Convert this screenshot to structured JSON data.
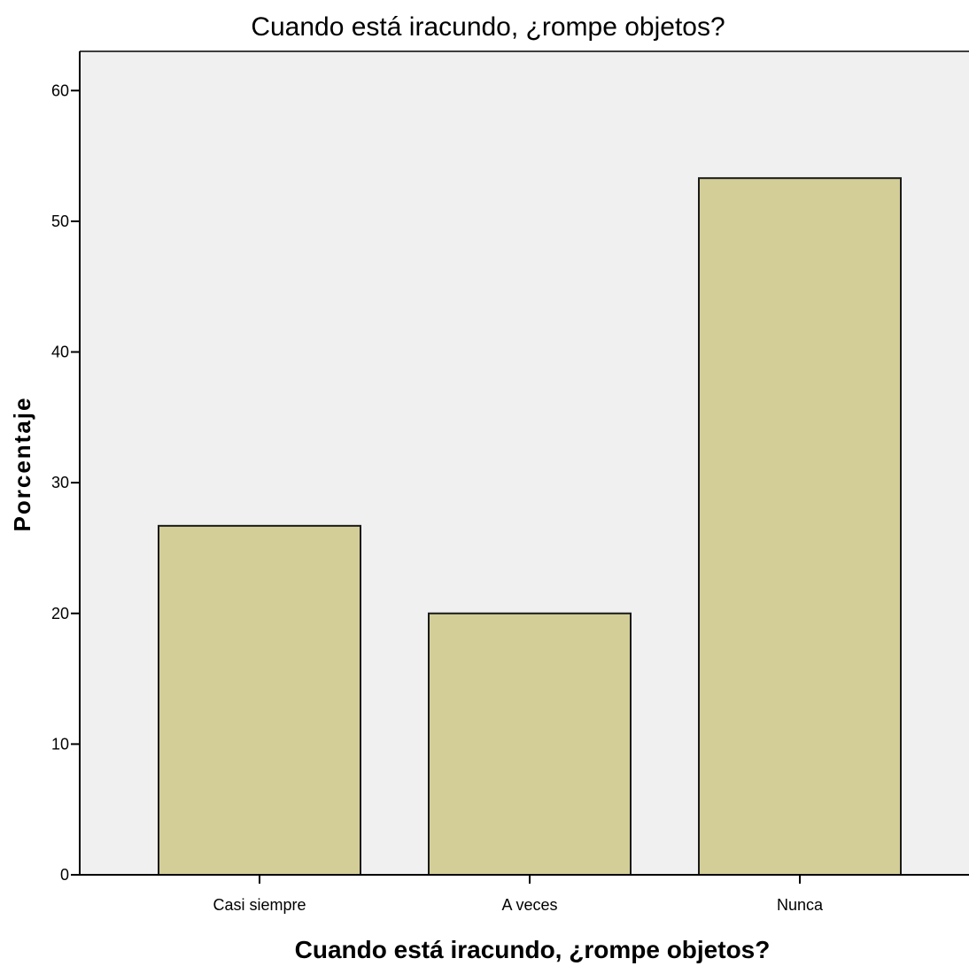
{
  "colors": {
    "plot_background": "#f0f0f0",
    "bar_fill": "#d3ce97",
    "bar_stroke": "#1a1a1a",
    "axis": "#000000"
  },
  "chart_data": {
    "type": "bar",
    "title": "Cuando está iracundo, ¿rompe objetos?",
    "xlabel": "Cuando está iracundo, ¿rompe objetos?",
    "ylabel": "Porcentaje",
    "categories": [
      "Casi siempre",
      "A veces",
      "Nunca"
    ],
    "values": [
      26.7,
      20.0,
      53.3
    ],
    "ylim": [
      0,
      63
    ],
    "yticks": [
      0,
      10,
      20,
      30,
      40,
      50,
      60
    ],
    "grid": false,
    "legend": "none"
  }
}
